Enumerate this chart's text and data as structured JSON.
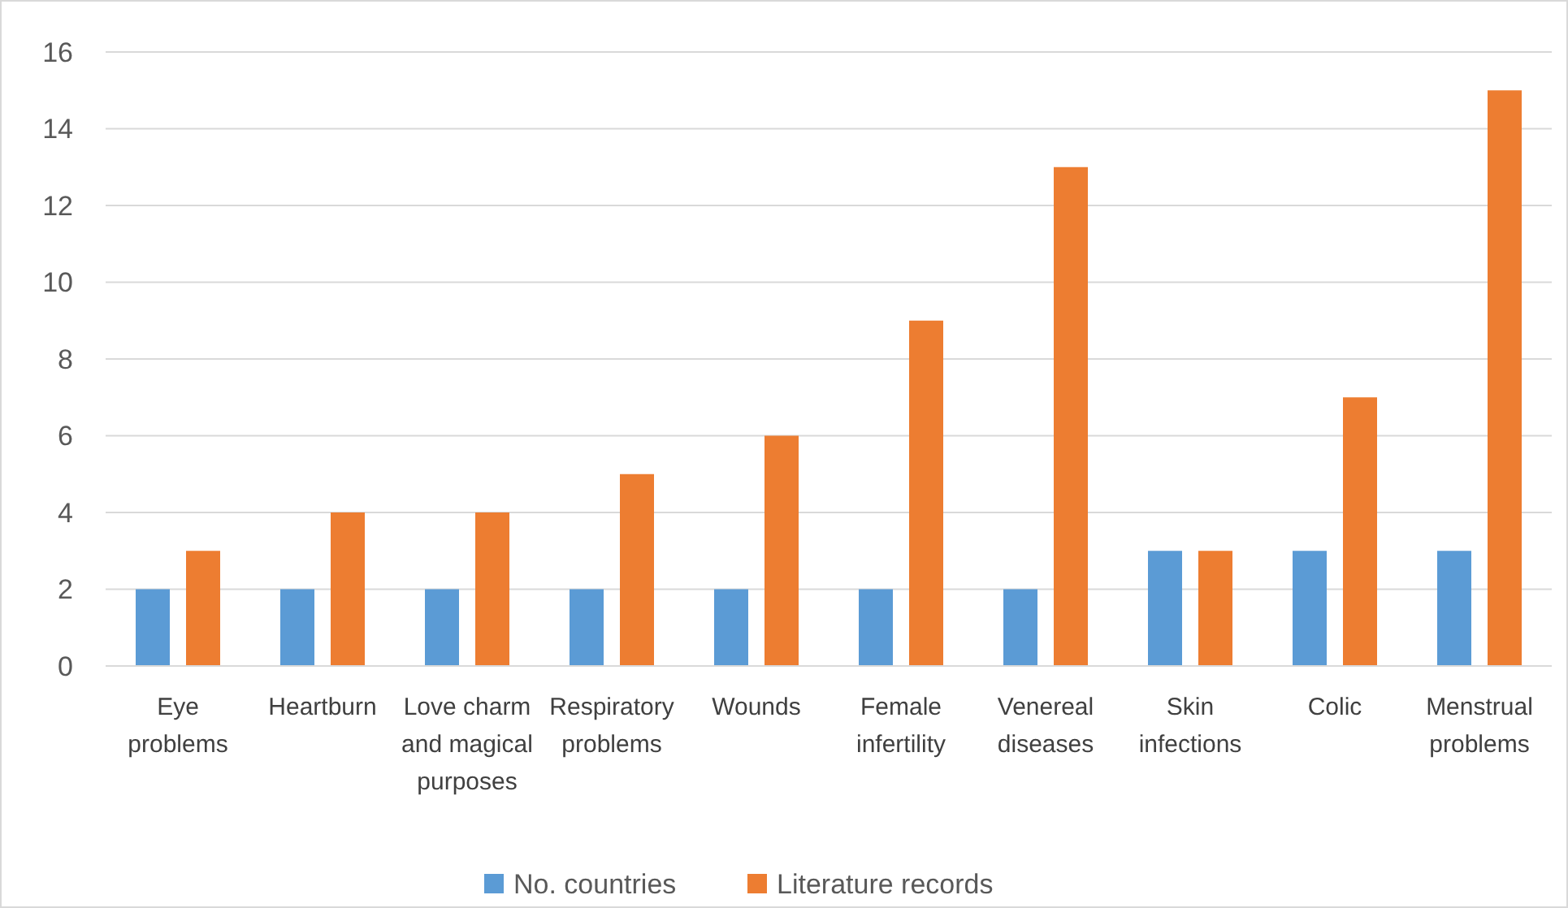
{
  "chart_data": {
    "type": "bar",
    "categories": [
      "Eye problems",
      "Heartburn",
      "Love charm and magical purposes",
      "Respiratory problems",
      "Wounds",
      "Female infertility",
      "Venereal diseases",
      "Skin infections",
      "Colic",
      "Menstrual problems"
    ],
    "series": [
      {
        "name": "No. countries",
        "color": "#5b9bd5",
        "values": [
          2,
          2,
          2,
          2,
          2,
          2,
          2,
          3,
          3,
          3
        ]
      },
      {
        "name": "Literature records",
        "color": "#ed7d31",
        "values": [
          3,
          4,
          4,
          5,
          6,
          9,
          13,
          3,
          7,
          15
        ]
      }
    ],
    "ylim": [
      0,
      16
    ],
    "yticks": [
      0,
      2,
      4,
      6,
      8,
      10,
      12,
      14,
      16
    ],
    "grid": "y",
    "legend": "bottom"
  }
}
